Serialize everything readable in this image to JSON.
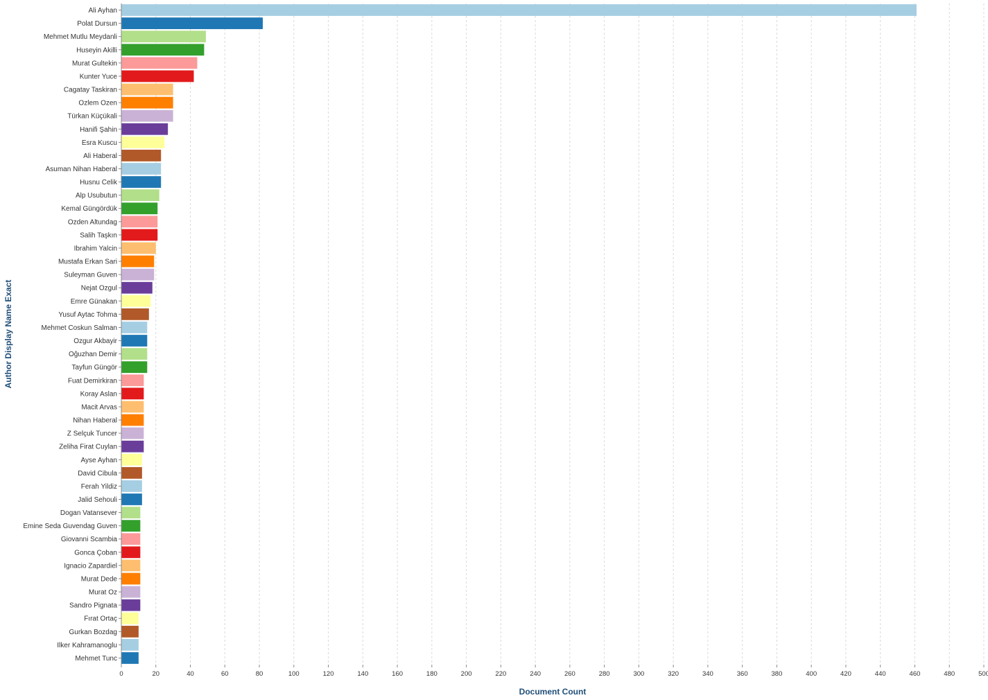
{
  "chart_data": {
    "type": "bar",
    "orientation": "horizontal",
    "xlabel": "Document Count",
    "ylabel": "Author Display Name Exact",
    "xlim": [
      0,
      500
    ],
    "xticks": [
      0,
      20,
      40,
      60,
      80,
      100,
      120,
      140,
      160,
      180,
      200,
      220,
      240,
      260,
      280,
      300,
      320,
      340,
      360,
      380,
      400,
      420,
      440,
      460,
      480,
      500
    ],
    "grid": true,
    "categories": [
      "Ali Ayhan",
      "Polat Dursun",
      "Mehmet Mutlu Meydanli",
      "Huseyin Akilli",
      "Murat Gultekin",
      "Kunter Yuce",
      "Cagatay Taskiran",
      "Ozlem Ozen",
      "Türkan Küçükali",
      "Hanifi Şahin",
      "Esra Kuscu",
      "Ali Haberal",
      "Asuman Nihan Haberal",
      "Husnu Celik",
      "Alp Usubutun",
      "Kemal Güngördük",
      "Ozden Altundag",
      "Salih Taşkın",
      "Ibrahim Yalcin",
      "Mustafa Erkan Sari",
      "Suleyman Guven",
      "Nejat Ozgul",
      "Emre Günakan",
      "Yusuf Aytac Tohma",
      "Mehmet Coskun Salman",
      "Ozgur Akbayir",
      "Oğuzhan Demir",
      "Tayfun Güngör",
      "Fuat Demirkiran",
      "Koray Aslan",
      "Macit Arvas",
      "Nihan Haberal",
      "Z Selçuk Tuncer",
      "Zeliha Firat Cuylan",
      "Ayse Ayhan",
      "David Cibula",
      "Ferah Yildiz",
      "Jalid Sehouli",
      "Dogan Vatansever",
      "Emine Seda Guvendag Guven",
      "Giovanni Scambia",
      "Gonca Çoban",
      "Ignacio Zapardiel",
      "Murat Dede",
      "Murat Oz",
      "Sandro Pignata",
      "Fırat Ortaç",
      "Gurkan Bozdag",
      "Ilker Kahramanoglu",
      "Mehmet Tunc"
    ],
    "values": [
      461,
      82,
      49,
      48,
      44,
      42,
      30,
      30,
      30,
      27,
      25,
      23,
      23,
      23,
      22,
      21,
      21,
      21,
      20,
      19,
      19,
      18,
      17,
      16,
      15,
      15,
      15,
      15,
      13,
      13,
      13,
      13,
      13,
      13,
      12,
      12,
      12,
      12,
      11,
      11,
      11,
      11,
      11,
      11,
      11,
      11,
      10,
      10,
      10,
      10
    ],
    "palette": [
      "#a6cee3",
      "#1f78b4",
      "#b2df8a",
      "#33a02c",
      "#fb9a99",
      "#e31a1c",
      "#fdbf6f",
      "#ff7f00",
      "#cab2d6",
      "#6a3d9a",
      "#ffff99",
      "#b15928"
    ]
  }
}
